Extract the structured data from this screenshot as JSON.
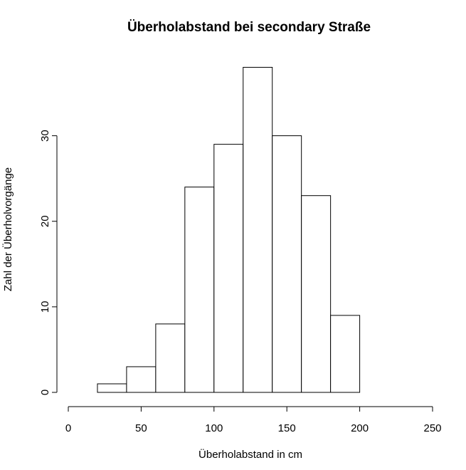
{
  "chart_data": {
    "type": "bar",
    "title": "Überholabstand bei secondary Straße",
    "xlabel": "Überholabstand in cm",
    "ylabel": "Zahl der Überholvorgänge",
    "xlim": [
      0,
      250
    ],
    "ylim": [
      0,
      38
    ],
    "x_ticks": [
      "0",
      "50",
      "100",
      "150",
      "200",
      "250"
    ],
    "y_ticks": [
      "0",
      "10",
      "20",
      "30"
    ],
    "bins": [
      {
        "from": 20,
        "to": 40,
        "count": 1
      },
      {
        "from": 40,
        "to": 60,
        "count": 3
      },
      {
        "from": 60,
        "to": 80,
        "count": 8
      },
      {
        "from": 80,
        "to": 100,
        "count": 24
      },
      {
        "from": 100,
        "to": 120,
        "count": 29
      },
      {
        "from": 120,
        "to": 140,
        "count": 38
      },
      {
        "from": 140,
        "to": 160,
        "count": 30
      },
      {
        "from": 160,
        "to": 180,
        "count": 23
      },
      {
        "from": 180,
        "to": 200,
        "count": 9
      }
    ],
    "grid": false,
    "bar_fill": "#ffffff",
    "bar_stroke": "#000000"
  }
}
